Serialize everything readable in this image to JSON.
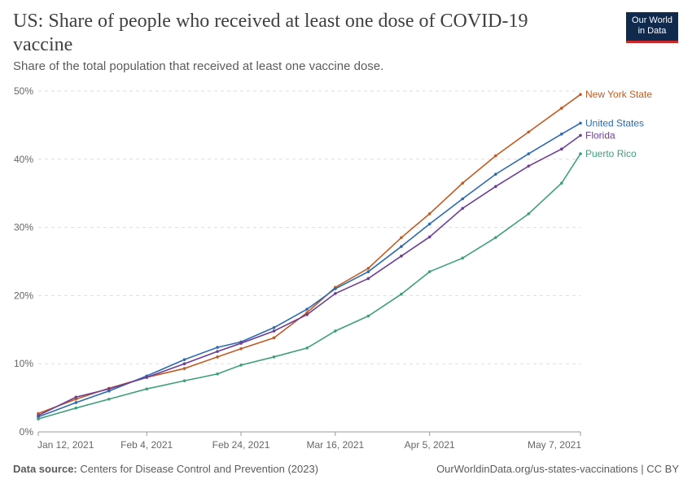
{
  "header": {
    "title": "US: Share of people who received at least one dose of COVID-19 vaccine",
    "subtitle": "Share of the total population that received at least one vaccine dose."
  },
  "logo": {
    "line1": "Our World",
    "line2": "in Data"
  },
  "footer": {
    "source_label": "Data source:",
    "source_text": "Centers for Disease Control and Prevention (2023)",
    "link_text": "OurWorldinData.org/us-states-vaccinations",
    "license": "| CC BY"
  },
  "chart_data": {
    "type": "line",
    "x_ticks": [
      "Jan 12, 2021",
      "Feb 4, 2021",
      "Feb 24, 2021",
      "Mar 16, 2021",
      "Apr 5, 2021",
      "May 7, 2021"
    ],
    "x_range": [
      "2021-01-12",
      "2021-05-07"
    ],
    "y_ticks": [
      "0%",
      "10%",
      "20%",
      "30%",
      "40%",
      "50%"
    ],
    "ylim": [
      0,
      50
    ],
    "grid": "horizontal dashed",
    "legend": "labels at line ends (right)",
    "series": [
      {
        "name": "New York State",
        "color": "#c15b24",
        "points": [
          [
            "2021-01-12",
            2.7
          ],
          [
            "2021-01-20",
            4.8
          ],
          [
            "2021-01-27",
            6.4
          ],
          [
            "2021-02-04",
            8.0
          ],
          [
            "2021-02-12",
            9.3
          ],
          [
            "2021-02-19",
            11.0
          ],
          [
            "2021-02-24",
            12.2
          ],
          [
            "2021-03-03",
            13.8
          ],
          [
            "2021-03-10",
            17.5
          ],
          [
            "2021-03-16",
            21.2
          ],
          [
            "2021-03-23",
            24.0
          ],
          [
            "2021-03-30",
            28.5
          ],
          [
            "2021-04-05",
            32.0
          ],
          [
            "2021-04-12",
            36.5
          ],
          [
            "2021-04-19",
            40.5
          ],
          [
            "2021-04-26",
            44.0
          ],
          [
            "2021-05-03",
            47.5
          ],
          [
            "2021-05-07",
            49.5
          ]
        ]
      },
      {
        "name": "United States",
        "color": "#2d6bb0",
        "points": [
          [
            "2021-01-12",
            2.2
          ],
          [
            "2021-01-20",
            4.3
          ],
          [
            "2021-01-27",
            6.0
          ],
          [
            "2021-02-04",
            8.2
          ],
          [
            "2021-02-12",
            10.6
          ],
          [
            "2021-02-19",
            12.4
          ],
          [
            "2021-02-24",
            13.2
          ],
          [
            "2021-03-03",
            15.3
          ],
          [
            "2021-03-10",
            18.0
          ],
          [
            "2021-03-16",
            21.0
          ],
          [
            "2021-03-23",
            23.5
          ],
          [
            "2021-03-30",
            27.2
          ],
          [
            "2021-04-05",
            30.5
          ],
          [
            "2021-04-12",
            34.2
          ],
          [
            "2021-04-19",
            37.8
          ],
          [
            "2021-04-26",
            40.8
          ],
          [
            "2021-05-03",
            43.7
          ],
          [
            "2021-05-07",
            45.3
          ]
        ]
      },
      {
        "name": "Florida",
        "color": "#6e3e97",
        "points": [
          [
            "2021-01-12",
            2.4
          ],
          [
            "2021-01-20",
            5.1
          ],
          [
            "2021-01-27",
            6.3
          ],
          [
            "2021-02-04",
            8.0
          ],
          [
            "2021-02-12",
            10.0
          ],
          [
            "2021-02-19",
            11.8
          ],
          [
            "2021-02-24",
            13.0
          ],
          [
            "2021-03-03",
            14.8
          ],
          [
            "2021-03-10",
            17.2
          ],
          [
            "2021-03-16",
            20.3
          ],
          [
            "2021-03-23",
            22.5
          ],
          [
            "2021-03-30",
            25.8
          ],
          [
            "2021-04-05",
            28.6
          ],
          [
            "2021-04-12",
            32.8
          ],
          [
            "2021-04-19",
            36.0
          ],
          [
            "2021-04-26",
            39.0
          ],
          [
            "2021-05-03",
            41.5
          ],
          [
            "2021-05-07",
            43.5
          ]
        ]
      },
      {
        "name": "Puerto Rico",
        "color": "#3f9f7f",
        "points": [
          [
            "2021-01-12",
            1.9
          ],
          [
            "2021-01-20",
            3.5
          ],
          [
            "2021-01-27",
            4.8
          ],
          [
            "2021-02-04",
            6.3
          ],
          [
            "2021-02-12",
            7.5
          ],
          [
            "2021-02-19",
            8.5
          ],
          [
            "2021-02-24",
            9.8
          ],
          [
            "2021-03-03",
            11.0
          ],
          [
            "2021-03-10",
            12.3
          ],
          [
            "2021-03-16",
            14.8
          ],
          [
            "2021-03-23",
            17.0
          ],
          [
            "2021-03-30",
            20.2
          ],
          [
            "2021-04-05",
            23.5
          ],
          [
            "2021-04-12",
            25.5
          ],
          [
            "2021-04-19",
            28.5
          ],
          [
            "2021-04-26",
            32.0
          ],
          [
            "2021-05-03",
            36.5
          ],
          [
            "2021-05-07",
            40.8
          ]
        ]
      }
    ]
  }
}
